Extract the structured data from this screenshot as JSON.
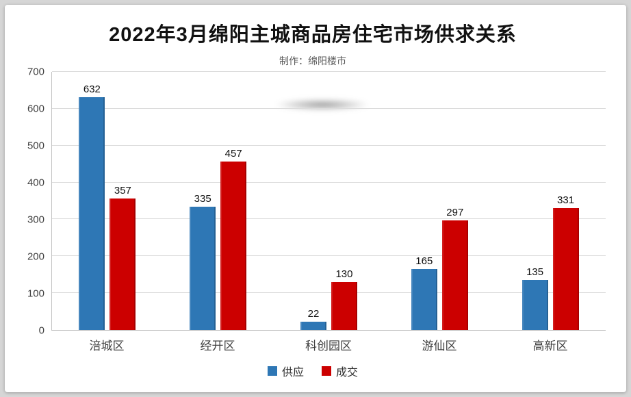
{
  "page": {
    "background_color": "#d6d6d6",
    "card_color": "#ffffff"
  },
  "chart_data": {
    "type": "bar",
    "title": "2022年3月绵阳主城商品房住宅市场供求关系",
    "subtitle": "制作：绵阳楼市",
    "categories": [
      "涪城区",
      "经开区",
      "科创园区",
      "游仙区",
      "高新区"
    ],
    "series": [
      {
        "name": "供应",
        "color": "#2e77b5",
        "values": [
          632,
          335,
          22,
          165,
          135
        ]
      },
      {
        "name": "成交",
        "color": "#cc0000",
        "values": [
          357,
          457,
          130,
          297,
          331
        ]
      }
    ],
    "ylim": [
      0,
      700
    ],
    "ytick_step": 100,
    "grid": true,
    "legend_position": "bottom",
    "xlabel": "",
    "ylabel": ""
  }
}
